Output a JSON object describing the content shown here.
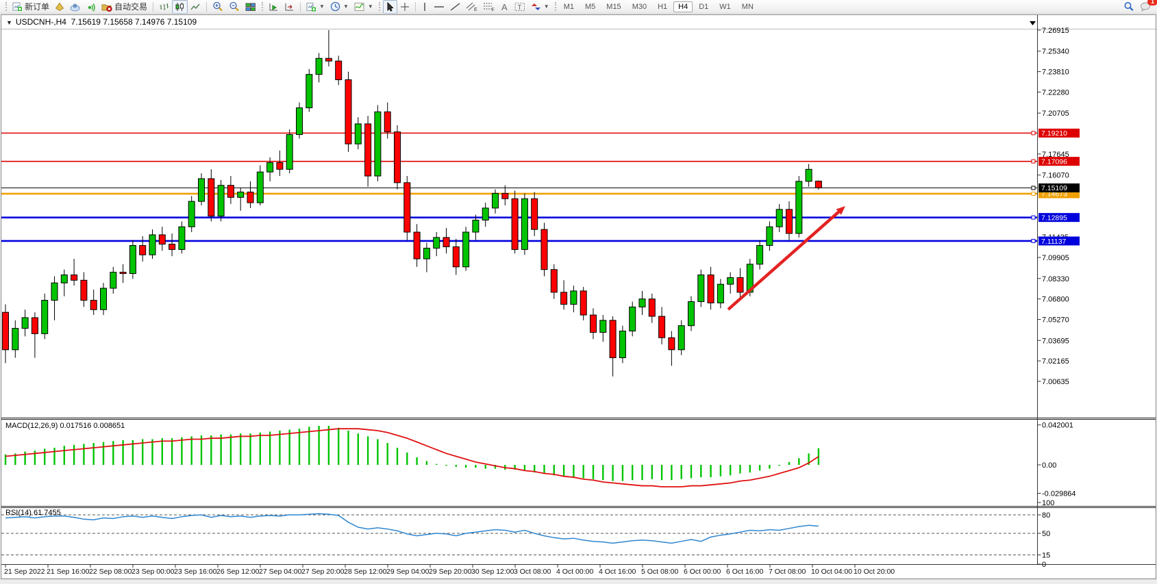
{
  "toolbar": {
    "new_order_label": "新订单",
    "autotrading_label": "自动交易",
    "timeframes": [
      "M1",
      "M5",
      "M15",
      "M30",
      "H1",
      "H4",
      "D1",
      "W1",
      "MN"
    ],
    "active_timeframe": "H4",
    "badge_count": "1"
  },
  "chart": {
    "title": "USDCNH-,H4",
    "ohlc_display": "7.15619 7.15658 7.14976 7.15109"
  },
  "chart_data": {
    "type": "candlestick",
    "symbol": "USDCNH-",
    "period": "H4",
    "ylim": [
      6.9792,
      7.2763
    ],
    "grid": false,
    "price_ticks": [
      7.26915,
      7.2534,
      7.2381,
      7.2228,
      7.20705,
      7.17645,
      7.1607,
      7.11435,
      7.09905,
      7.0833,
      7.068,
      7.0527,
      7.03695,
      7.02165,
      7.00635
    ],
    "current_price": {
      "value": 7.15109,
      "label": "7.15109",
      "color": "#000000"
    },
    "levels": [
      {
        "value": 7.1921,
        "label": "7.19210",
        "color": "#dd0000",
        "width": 1.6
      },
      {
        "value": 7.17096,
        "label": "7.17096",
        "color": "#dd0000",
        "width": 1.6
      },
      {
        "value": 7.14673,
        "label": "7.14673",
        "color": "#f0a000",
        "width": 2.6
      },
      {
        "value": 7.12895,
        "label": "7.12895",
        "color": "#0000dd",
        "width": 2.6
      },
      {
        "value": 7.11137,
        "label": "7.11137",
        "color": "#0000dd",
        "width": 2.6
      }
    ],
    "trend_arrow": {
      "from": [
        1063,
        452
      ],
      "to": [
        1234,
        301
      ],
      "color": "#e32222"
    },
    "x_labels": [
      "21 Sep 2022",
      "21 Sep 16:00",
      "22 Sep 08:00",
      "23 Sep 00:00",
      "23 Sep 16:00",
      "26 Sep 12:00",
      "27 Sep 04:00",
      "27 Sep 20:00",
      "28 Sep 12:00",
      "29 Sep 04:00",
      "29 Sep 20:00",
      "30 Sep 12:00",
      "3 Oct 08:00",
      "4 Oct 00:00",
      "4 Oct 16:00",
      "5 Oct 08:00",
      "6 Oct 00:00",
      "6 Oct 16:00",
      "7 Oct 08:00",
      "10 Oct 04:00",
      "10 Oct 20:00"
    ],
    "up_color": "#00c400",
    "down_color": "#ff0000",
    "candles": [
      [
        7.058,
        7.064,
        7.02,
        7.03
      ],
      [
        7.03,
        7.052,
        7.024,
        7.046
      ],
      [
        7.046,
        7.06,
        7.04,
        7.054
      ],
      [
        7.054,
        7.058,
        7.024,
        7.042
      ],
      [
        7.042,
        7.072,
        7.038,
        7.067
      ],
      [
        7.067,
        7.085,
        7.052,
        7.08
      ],
      [
        7.08,
        7.09,
        7.07,
        7.086
      ],
      [
        7.086,
        7.098,
        7.078,
        7.082
      ],
      [
        7.082,
        7.088,
        7.062,
        7.067
      ],
      [
        7.067,
        7.075,
        7.056,
        7.06
      ],
      [
        7.06,
        7.08,
        7.056,
        7.076
      ],
      [
        7.076,
        7.092,
        7.072,
        7.088
      ],
      [
        7.088,
        7.094,
        7.08,
        7.087
      ],
      [
        7.087,
        7.112,
        7.083,
        7.108
      ],
      [
        7.108,
        7.115,
        7.096,
        7.101
      ],
      [
        7.101,
        7.12,
        7.098,
        7.116
      ],
      [
        7.116,
        7.122,
        7.104,
        7.109
      ],
      [
        7.109,
        7.117,
        7.1,
        7.105
      ],
      [
        7.105,
        7.126,
        7.102,
        7.122
      ],
      [
        7.122,
        7.145,
        7.118,
        7.141
      ],
      [
        7.141,
        7.162,
        7.138,
        7.158
      ],
      [
        7.158,
        7.165,
        7.126,
        7.13
      ],
      [
        7.13,
        7.157,
        7.126,
        7.153
      ],
      [
        7.153,
        7.16,
        7.139,
        7.144
      ],
      [
        7.144,
        7.151,
        7.134,
        7.148
      ],
      [
        7.148,
        7.156,
        7.136,
        7.14
      ],
      [
        7.14,
        7.168,
        7.138,
        7.163
      ],
      [
        7.163,
        7.174,
        7.156,
        7.17
      ],
      [
        7.17,
        7.179,
        7.16,
        7.165
      ],
      [
        7.165,
        7.195,
        7.162,
        7.191
      ],
      [
        7.191,
        7.215,
        7.188,
        7.211
      ],
      [
        7.211,
        7.24,
        7.208,
        7.236
      ],
      [
        7.236,
        7.252,
        7.23,
        7.248
      ],
      [
        7.248,
        7.26915,
        7.242,
        7.246
      ],
      [
        7.246,
        7.25,
        7.228,
        7.232
      ],
      [
        7.232,
        7.238,
        7.178,
        7.184
      ],
      [
        7.184,
        7.204,
        7.18,
        7.199
      ],
      [
        7.199,
        7.205,
        7.152,
        7.16
      ],
      [
        7.16,
        7.213,
        7.156,
        7.208
      ],
      [
        7.208,
        7.215,
        7.188,
        7.193
      ],
      [
        7.193,
        7.198,
        7.15,
        7.155
      ],
      [
        7.155,
        7.16,
        7.112,
        7.118
      ],
      [
        7.118,
        7.124,
        7.092,
        7.098
      ],
      [
        7.098,
        7.11,
        7.088,
        7.106
      ],
      [
        7.106,
        7.118,
        7.1,
        7.114
      ],
      [
        7.114,
        7.121,
        7.102,
        7.107
      ],
      [
        7.107,
        7.113,
        7.086,
        7.092
      ],
      [
        7.092,
        7.122,
        7.089,
        7.118
      ],
      [
        7.118,
        7.131,
        7.112,
        7.127
      ],
      [
        7.127,
        7.14,
        7.122,
        7.136
      ],
      [
        7.136,
        7.15,
        7.132,
        7.147
      ],
      [
        7.147,
        7.153,
        7.138,
        7.143
      ],
      [
        7.143,
        7.149,
        7.102,
        7.105
      ],
      [
        7.105,
        7.147,
        7.101,
        7.143
      ],
      [
        7.143,
        7.148,
        7.115,
        7.12
      ],
      [
        7.12,
        7.125,
        7.085,
        7.09
      ],
      [
        7.09,
        7.094,
        7.068,
        7.073
      ],
      [
        7.073,
        7.082,
        7.06,
        7.064
      ],
      [
        7.064,
        7.078,
        7.058,
        7.074
      ],
      [
        7.074,
        7.077,
        7.052,
        7.056
      ],
      [
        7.056,
        7.061,
        7.038,
        7.043
      ],
      [
        7.043,
        7.056,
        7.036,
        7.052
      ],
      [
        7.052,
        7.055,
        7.01,
        7.024
      ],
      [
        7.024,
        7.048,
        7.02,
        7.044
      ],
      [
        7.044,
        7.066,
        7.04,
        7.062
      ],
      [
        7.062,
        7.074,
        7.056,
        7.068
      ],
      [
        7.068,
        7.072,
        7.05,
        7.055
      ],
      [
        7.055,
        7.062,
        7.034,
        7.039
      ],
      [
        7.039,
        7.044,
        7.018,
        7.03
      ],
      [
        7.03,
        7.052,
        7.026,
        7.048
      ],
      [
        7.048,
        7.07,
        7.044,
        7.066
      ],
      [
        7.066,
        7.09,
        7.062,
        7.086
      ],
      [
        7.086,
        7.092,
        7.06,
        7.065
      ],
      [
        7.065,
        7.083,
        7.061,
        7.079
      ],
      [
        7.079,
        7.088,
        7.072,
        7.084
      ],
      [
        7.084,
        7.091,
        7.068,
        7.073
      ],
      [
        7.073,
        7.098,
        7.07,
        7.094
      ],
      [
        7.094,
        7.112,
        7.09,
        7.108
      ],
      [
        7.108,
        7.126,
        7.104,
        7.122
      ],
      [
        7.122,
        7.139,
        7.118,
        7.135
      ],
      [
        7.135,
        7.141,
        7.112,
        7.117
      ],
      [
        7.117,
        7.16,
        7.114,
        7.156
      ],
      [
        7.156,
        7.169,
        7.152,
        7.165
      ],
      [
        7.15619,
        7.15658,
        7.14976,
        7.15109
      ]
    ],
    "indicators": [
      {
        "name": "MACD",
        "label": "MACD(12,26,9) 0.017516 0.008651",
        "histogram_color": "#00c400",
        "signal_color": "#e01010",
        "ticks": [
          {
            "v": 0.042001,
            "label": "0.042001"
          },
          {
            "v": 0,
            "label": "0.00"
          },
          {
            "v": -0.029864,
            "label": "-0.029864"
          }
        ],
        "main": [
          0.011,
          0.012,
          0.014,
          0.015,
          0.017,
          0.018,
          0.02,
          0.021,
          0.022,
          0.023,
          0.024,
          0.025,
          0.026,
          0.026,
          0.027,
          0.027,
          0.028,
          0.028,
          0.029,
          0.03,
          0.031,
          0.031,
          0.032,
          0.032,
          0.033,
          0.033,
          0.034,
          0.035,
          0.036,
          0.037,
          0.038,
          0.04,
          0.041,
          0.041,
          0.039,
          0.036,
          0.033,
          0.03,
          0.027,
          0.023,
          0.018,
          0.013,
          0.008,
          0.004,
          0.001,
          -0.001,
          -0.002,
          -0.003,
          -0.003,
          -0.004,
          -0.004,
          -0.005,
          -0.005,
          -0.006,
          -0.008,
          -0.009,
          -0.011,
          -0.012,
          -0.013,
          -0.014,
          -0.015,
          -0.016,
          -0.017,
          -0.017,
          -0.016,
          -0.016,
          -0.015,
          -0.016,
          -0.016,
          -0.015,
          -0.014,
          -0.013,
          -0.013,
          -0.012,
          -0.011,
          -0.009,
          -0.008,
          -0.006,
          -0.004,
          -0.001,
          0.003,
          0.007,
          0.012,
          0.0175
        ],
        "signal": [
          0.009,
          0.01,
          0.011,
          0.012,
          0.013,
          0.014,
          0.015,
          0.016,
          0.017,
          0.018,
          0.019,
          0.02,
          0.021,
          0.022,
          0.023,
          0.024,
          0.025,
          0.025,
          0.026,
          0.027,
          0.027,
          0.028,
          0.028,
          0.029,
          0.03,
          0.03,
          0.031,
          0.031,
          0.032,
          0.033,
          0.034,
          0.035,
          0.036,
          0.037,
          0.038,
          0.038,
          0.038,
          0.037,
          0.036,
          0.034,
          0.031,
          0.028,
          0.024,
          0.02,
          0.016,
          0.012,
          0.009,
          0.006,
          0.003,
          0.001,
          -0.001,
          -0.003,
          -0.004,
          -0.006,
          -0.007,
          -0.009,
          -0.01,
          -0.012,
          -0.013,
          -0.015,
          -0.016,
          -0.018,
          -0.019,
          -0.02,
          -0.021,
          -0.022,
          -0.022,
          -0.023,
          -0.023,
          -0.023,
          -0.022,
          -0.022,
          -0.021,
          -0.02,
          -0.019,
          -0.017,
          -0.016,
          -0.014,
          -0.012,
          -0.009,
          -0.006,
          -0.003,
          0.002,
          0.0087
        ]
      },
      {
        "name": "RSI",
        "label": "RSI(14) 61.7455",
        "line_color": "#2e86d0",
        "ticks": [
          {
            "v": 100,
            "label": "100"
          },
          {
            "v": 80,
            "label": "80"
          },
          {
            "v": 50,
            "label": "50"
          },
          {
            "v": 15,
            "label": "15"
          },
          {
            "v": 0,
            "label": "0"
          }
        ],
        "level_lines": [
          80,
          50,
          15
        ],
        "values": [
          75,
          76,
          77,
          75,
          77,
          78,
          78,
          76,
          73,
          72,
          75,
          74,
          77,
          78,
          76,
          78,
          76,
          74,
          77,
          79,
          80,
          76,
          79,
          77,
          78,
          76,
          78,
          79,
          78,
          80,
          80,
          81,
          82,
          81,
          79,
          68,
          60,
          57,
          59,
          57,
          54,
          49,
          46,
          48,
          50,
          49,
          46,
          50,
          52,
          54,
          56,
          55,
          52,
          55,
          50,
          46,
          43,
          41,
          42,
          39,
          37,
          36,
          34,
          36,
          38,
          39,
          38,
          36,
          34,
          37,
          40,
          37,
          44,
          47,
          49,
          52,
          55,
          54,
          56,
          55,
          58,
          61,
          63,
          61.7
        ]
      }
    ]
  }
}
